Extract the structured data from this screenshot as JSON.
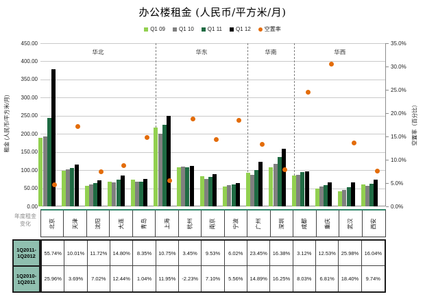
{
  "title": "办公楼租金 (人民币/平方米/月)",
  "chart_data": {
    "type": "bar",
    "subtype": "grouped bars with vacancy-rate scatter on secondary axis",
    "categories": [
      "北京",
      "天津",
      "沈阳",
      "大连",
      "青岛",
      "上海",
      "杭州",
      "南京",
      "宁波",
      "广州",
      "深圳",
      "成都",
      "重庆",
      "武汉",
      "西安"
    ],
    "regions": [
      {
        "name": "华北",
        "span": 5
      },
      {
        "name": "华东",
        "span": 4
      },
      {
        "name": "华南",
        "span": 2
      },
      {
        "name": "华西",
        "span": 4
      }
    ],
    "series": [
      {
        "name": "Q1 09",
        "color": "#92D050",
        "values": [
          190,
          98,
          56,
          69,
          73,
          218,
          108,
          83,
          55,
          92,
          107,
          85,
          50,
          42,
          60
        ]
      },
      {
        "name": "Q1 10",
        "color": "#808080",
        "values": [
          193,
          102,
          60,
          66,
          68,
          201,
          110,
          76,
          58,
          87,
          117,
          87,
          55,
          45,
          57
        ]
      },
      {
        "name": "Q1 11",
        "color": "#1F6B43",
        "values": [
          243,
          106,
          64,
          74,
          69,
          225,
          107,
          81,
          61,
          100,
          136,
          94,
          59,
          53,
          63
        ]
      },
      {
        "name": "Q1 12",
        "color": "#000000",
        "values": [
          379,
          116,
          72,
          85,
          75,
          249,
          111,
          89,
          65,
          123,
          158,
          97,
          66,
          67,
          73
        ]
      }
    ],
    "scatter": {
      "name": "空置率",
      "color": "#E36C09",
      "values": [
        4.7,
        17.2,
        7.4,
        8.8,
        14.8,
        5.5,
        18.8,
        14.3,
        18.4,
        13.3,
        7.9,
        24.5,
        30.5,
        13.6,
        7.6
      ]
    },
    "left_axis": {
      "title": "租金 (人民币/平方米/月)",
      "min": 0,
      "max": 450,
      "ticks": [
        "450.00",
        "400.00",
        "350.00",
        "300.00",
        "250.00",
        "200.00",
        "150.00",
        "100.00",
        "50.00",
        "0.00"
      ]
    },
    "right_axis": {
      "title": "空置率（百分比）",
      "min": 0,
      "max": 35,
      "ticks": [
        "35.0%",
        "30.0%",
        "25.0%",
        "20.0%",
        "15.0%",
        "10.0%",
        "5.0%",
        "0.0%"
      ]
    },
    "grid": true,
    "legend_position": "top"
  },
  "table": {
    "corner_label": [
      "年度租金",
      "变化"
    ],
    "header_bg": "#8FBFAF",
    "rows": [
      {
        "label": [
          "1Q2011-",
          "1Q2012"
        ],
        "values": [
          "55.74%",
          "10.01%",
          "11.72%",
          "14.80%",
          "8.35%",
          "10.75%",
          "3.45%",
          "9.53%",
          "6.02%",
          "23.45%",
          "16.38%",
          "3.12%",
          "12.53%",
          "25.98%",
          "16.04%"
        ]
      },
      {
        "label": [
          "1Q2010-",
          "1Q2011"
        ],
        "values": [
          "25.96%",
          "3.69%",
          "7.02%",
          "12.44%",
          "1.04%",
          "11.95%",
          "-2.23%",
          "7.10%",
          "5.56%",
          "14.89%",
          "16.25%",
          "8.03%",
          "6.81%",
          "18.40%",
          "9.74%"
        ]
      }
    ]
  },
  "colors": {
    "grid": "#C9C9C9",
    "separator": "#7F7F7F",
    "axis_line": "#8C8C8C",
    "table_axis_teal": "#2F8468",
    "corner_text": "#8C8C8C"
  }
}
